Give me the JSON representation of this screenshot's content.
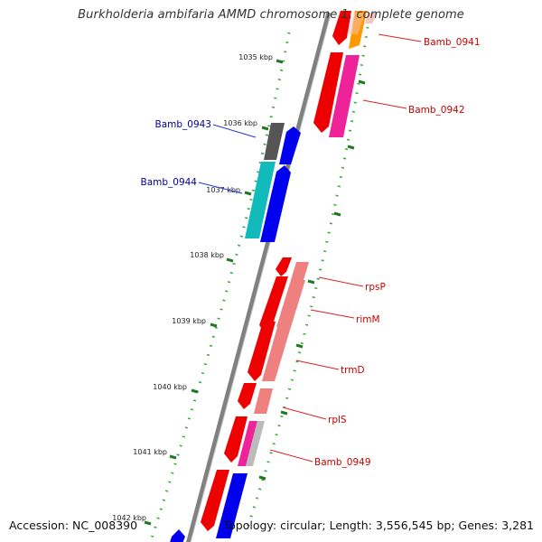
{
  "title": "Burkholderia ambifaria AMMD chromosome 1, complete genome",
  "footer": {
    "accession": "Accession: NC_008390",
    "topology": "Topology: circular; Length: 3,556,545 bp; Genes: 3,281"
  },
  "ruler_labels": [
    "1035 kbp",
    "1036 kbp",
    "1037 kbp",
    "1038 kbp",
    "1039 kbp",
    "1040 kbp",
    "1041 kbp",
    "1042 kbp"
  ],
  "gene_labels": {
    "inner": [
      "Bamb_0943",
      "Bamb_0944"
    ],
    "outer": [
      "Bamb_0941",
      "Bamb_0942",
      "rpsP",
      "rimM",
      "trmD",
      "rplS",
      "Bamb_0949"
    ]
  },
  "colors": {
    "backbone": "#808080",
    "ruler_major": "#227722",
    "ruler_minor": "#33aa33",
    "label_inner": "#000099",
    "label_outer": "#cc0000",
    "leader_inner": "#2233cc",
    "leader_outer": "#dd2222",
    "gene_red": "#ee0000",
    "gene_salmon": "#ee8080",
    "gene_pink_light": "#f8c4c4",
    "gene_orange": "#ff9900",
    "gene_magenta": "#ee2299",
    "gene_grey_dark": "#555555",
    "gene_grey_light": "#bbbbbb",
    "gene_blue": "#0000ee",
    "gene_cyan": "#11bbbb"
  }
}
